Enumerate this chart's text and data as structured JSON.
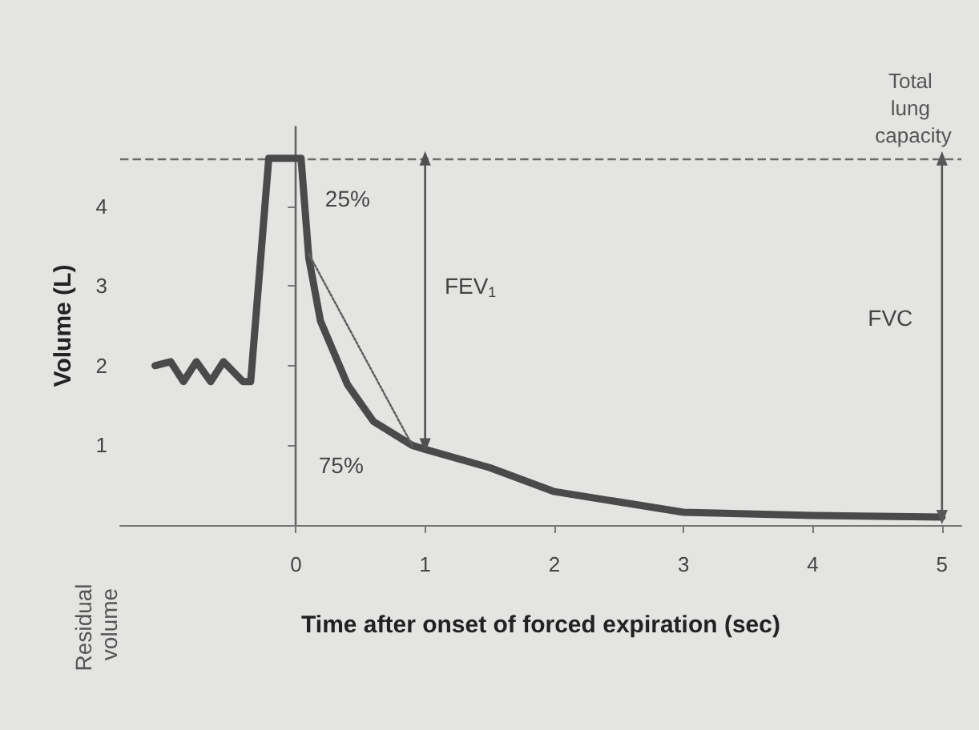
{
  "chart_data": {
    "type": "line",
    "xlabel": "Time after onset of forced expiration (sec)",
    "ylabel": "Volume (L)",
    "xlim": [
      -1.36,
      5.15
    ],
    "ylim": [
      0,
      5
    ],
    "xticks": [
      0,
      1,
      2,
      3,
      4,
      5
    ],
    "yticks": [
      1,
      2,
      3,
      4
    ],
    "marker": "none",
    "series": [
      {
        "color": "#4a4a4a",
        "x": [
          -1.09,
          -0.97,
          -0.87,
          -0.77,
          -0.66,
          -0.56,
          -0.41,
          -0.35,
          -0.21,
          0.04,
          0.1,
          0.19,
          0.4,
          0.6,
          0.9,
          1.0,
          1.5,
          2,
          3,
          4,
          5
        ],
        "values": [
          2.0,
          2.05,
          1.8,
          2.05,
          1.8,
          2.05,
          1.8,
          1.8,
          4.6,
          4.6,
          3.35,
          2.56,
          1.76,
          1.3,
          1.0,
          0.95,
          0.72,
          0.42,
          0.16,
          0.12,
          0.1
        ]
      },
      {
        "color": "#606060",
        "line_style": "dotted",
        "x": [
          0.1,
          0.9
        ],
        "values": [
          3.4,
          1.0
        ]
      },
      {
        "color": "#505050",
        "marker": "triangle",
        "x": [
          1,
          1
        ],
        "values": [
          4.6,
          1.0
        ]
      },
      {
        "color": "#585858",
        "marker": "triangle",
        "x": [
          5,
          5
        ],
        "values": [
          4.6,
          0.1
        ]
      }
    ],
    "ref_lines": [
      {
        "axis": "y",
        "value": 4.6,
        "label": "Total lung capacity",
        "line_style": "dashed",
        "color": "#6a6a6a"
      },
      {
        "axis": "x",
        "value": 0,
        "color": "#666666"
      }
    ],
    "annotations": [
      "25%",
      "75%",
      "FEV$_{1}$",
      "FVC",
      "Residual volume"
    ]
  }
}
